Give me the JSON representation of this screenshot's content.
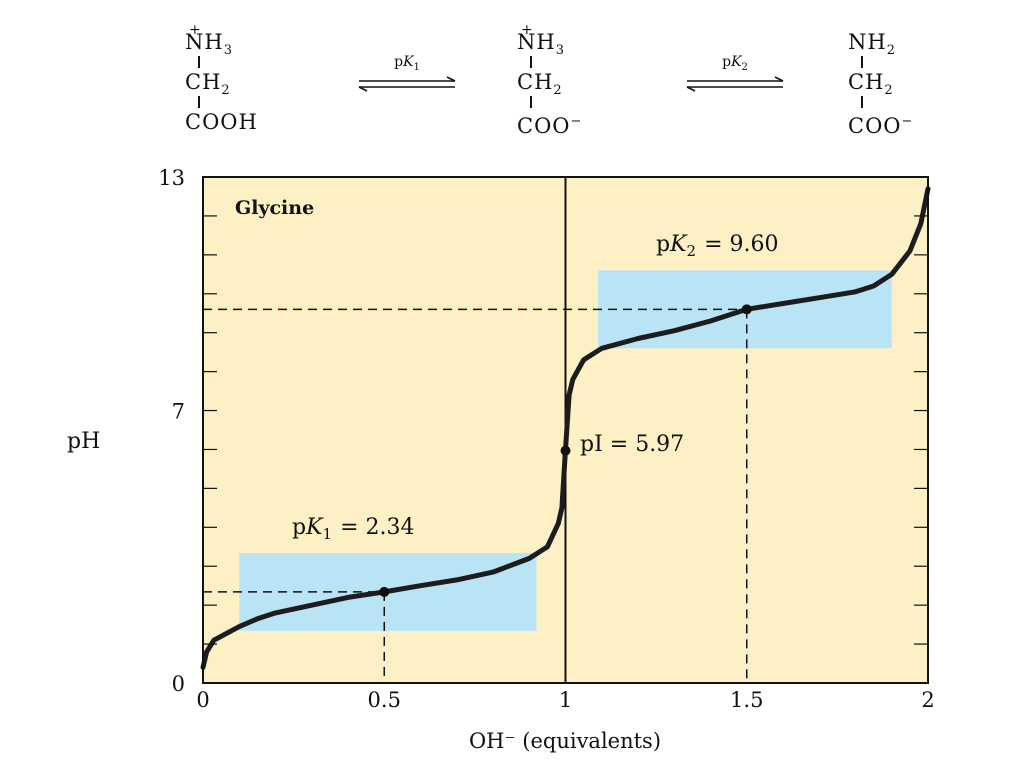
{
  "scheme": {
    "species": [
      {
        "rows": [
          {
            "t": "NH",
            "sub": "3",
            "plus": true
          },
          {
            "t": "CH",
            "sub": "2"
          },
          {
            "t": "COOH"
          }
        ]
      },
      {
        "rows": [
          {
            "t": "NH",
            "sub": "3",
            "plus": true
          },
          {
            "t": "CH",
            "sub": "2"
          },
          {
            "t": "COO",
            "sup": "−"
          }
        ]
      },
      {
        "rows": [
          {
            "t": "NH",
            "sub": "2"
          },
          {
            "t": "CH",
            "sub": "2"
          },
          {
            "t": "COO",
            "sup": "−"
          }
        ]
      }
    ],
    "arrows": [
      {
        "p": "p",
        "k": "K",
        "sub": "1"
      },
      {
        "p": "p",
        "k": "K",
        "sub": "2"
      }
    ]
  },
  "chart_data": {
    "type": "line",
    "title": "Glycine",
    "xlabel": "OH⁻ (equivalents)",
    "ylabel": "pH",
    "xlim": [
      0,
      2
    ],
    "ylim": [
      0,
      13
    ],
    "x_ticks": [
      "0",
      "0.5",
      "1",
      "1.5",
      "2"
    ],
    "y_tick_labels": [
      {
        "value": 0,
        "label": "0"
      },
      {
        "value": 7,
        "label": "7"
      },
      {
        "value": 13,
        "label": "13"
      }
    ],
    "series": [
      {
        "x": [
          0,
          0.01,
          0.03,
          0.05,
          0.1,
          0.15,
          0.2,
          0.3,
          0.4,
          0.5,
          0.6,
          0.7,
          0.8,
          0.9,
          0.95,
          0.98,
          0.99,
          1.0,
          1.01,
          1.02,
          1.05,
          1.1,
          1.2,
          1.3,
          1.4,
          1.5,
          1.6,
          1.7,
          1.8,
          1.85,
          1.9,
          1.95,
          1.98,
          2.0
        ],
        "y": [
          0.4,
          0.8,
          1.1,
          1.2,
          1.45,
          1.65,
          1.8,
          2.0,
          2.2,
          2.34,
          2.5,
          2.65,
          2.85,
          3.2,
          3.5,
          4.1,
          4.5,
          6.0,
          7.4,
          7.8,
          8.3,
          8.6,
          8.85,
          9.05,
          9.3,
          9.6,
          9.75,
          9.9,
          10.05,
          10.2,
          10.5,
          11.1,
          11.8,
          12.7
        ]
      }
    ],
    "points": [
      {
        "x": 0.5,
        "y": 2.34
      },
      {
        "x": 1.0,
        "y": 5.97
      },
      {
        "x": 1.5,
        "y": 9.6
      }
    ],
    "annotations": {
      "pk1": {
        "p": "p",
        "k": "K",
        "sub": "1",
        "rest": "= 2.34"
      },
      "pk2": {
        "p": "p",
        "k": "K",
        "sub": "2",
        "rest": "= 9.60"
      },
      "pi": "pI = 5.97"
    },
    "buffer_regions": [
      {
        "x": [
          0.1,
          0.92
        ],
        "y": [
          1.34,
          3.34
        ]
      },
      {
        "x": [
          1.09,
          1.9
        ],
        "y": [
          8.6,
          10.6
        ]
      }
    ],
    "colors": {
      "background": "#fdf0c5",
      "buffer": "#b9e4f6",
      "curve": "#1c1c1c"
    }
  }
}
